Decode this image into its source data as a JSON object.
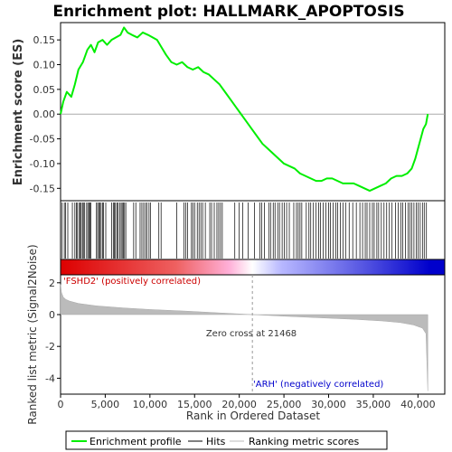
{
  "chart_data": {
    "type": "line",
    "title": "Enrichment plot: HALLMARK_APOPTOSIS",
    "es_panel": {
      "ylabel": "Enrichment score (ES)",
      "ylim": [
        -0.175,
        0.185
      ],
      "yticks": [
        0.15,
        0.1,
        0.05,
        0.0,
        -0.05,
        -0.1,
        -0.15
      ],
      "ytick_labels": [
        "0.15",
        "0.10",
        "0.05",
        "0.00",
        "-0.05",
        "-0.10",
        "-0.15"
      ],
      "series": [
        {
          "name": "Enrichment profile",
          "color": "#00ee00",
          "x": [
            0,
            300,
            700,
            1200,
            1600,
            2000,
            2500,
            3000,
            3400,
            3800,
            4200,
            4700,
            5200,
            5700,
            6200,
            6700,
            7100,
            7500,
            8000,
            8600,
            9200,
            9800,
            10300,
            10800,
            11300,
            11800,
            12400,
            13000,
            13600,
            14200,
            14800,
            15400,
            16000,
            16600,
            17200,
            17800,
            18400,
            19000,
            19600,
            20200,
            20800,
            21400,
            22000,
            22600,
            23200,
            23800,
            24400,
            25000,
            25600,
            26200,
            26800,
            27400,
            28000,
            28600,
            29200,
            29800,
            30400,
            31000,
            31600,
            32200,
            32800,
            33400,
            34000,
            34600,
            35200,
            35800,
            36400,
            37000,
            37600,
            38200,
            38800,
            39300,
            39700,
            40000,
            40300,
            40600,
            40900,
            41100
          ],
          "y": [
            0.0,
            0.025,
            0.045,
            0.035,
            0.06,
            0.09,
            0.105,
            0.13,
            0.14,
            0.125,
            0.145,
            0.15,
            0.14,
            0.15,
            0.155,
            0.16,
            0.175,
            0.165,
            0.16,
            0.155,
            0.165,
            0.16,
            0.155,
            0.15,
            0.135,
            0.12,
            0.105,
            0.1,
            0.105,
            0.095,
            0.09,
            0.095,
            0.085,
            0.08,
            0.07,
            0.06,
            0.045,
            0.03,
            0.015,
            0.0,
            -0.015,
            -0.03,
            -0.045,
            -0.06,
            -0.07,
            -0.08,
            -0.09,
            -0.1,
            -0.105,
            -0.11,
            -0.12,
            -0.125,
            -0.13,
            -0.135,
            -0.135,
            -0.13,
            -0.13,
            -0.135,
            -0.14,
            -0.14,
            -0.14,
            -0.145,
            -0.15,
            -0.155,
            -0.15,
            -0.145,
            -0.14,
            -0.13,
            -0.125,
            -0.125,
            -0.12,
            -0.11,
            -0.09,
            -0.07,
            -0.05,
            -0.03,
            -0.02,
            0.0
          ]
        }
      ]
    },
    "rank_panel": {
      "ylabel": "Ranked list metric (Signal2Noise)",
      "xlabel": "Rank in Ordered Dataset",
      "xlim": [
        0,
        43000
      ],
      "xticks": [
        0,
        5000,
        10000,
        15000,
        20000,
        25000,
        30000,
        35000,
        40000
      ],
      "xtick_labels": [
        "0",
        "5,000",
        "10,000",
        "15,000",
        "20,000",
        "25,000",
        "30,000",
        "35,000",
        "40,000"
      ],
      "ylim": [
        -5.0,
        2.5
      ],
      "yticks": [
        2,
        0,
        -2,
        -4
      ],
      "ytick_labels": [
        "2",
        "0",
        "-2",
        "-4"
      ],
      "zero_cross_rank": 21468,
      "annotations": {
        "zero_cross": "Zero cross at 21468",
        "positive": "'FSHD2' (positively correlated)",
        "negative": "'ARH' (negatively correlated)"
      },
      "metric_profile": {
        "rank": [
          0,
          100,
          300,
          600,
          1000,
          2000,
          4000,
          7000,
          10000,
          14000,
          18000,
          21468,
          25000,
          29000,
          33000,
          36000,
          38000,
          39500,
          40500,
          40900,
          41000,
          41100
        ],
        "value": [
          1.9,
          1.4,
          1.1,
          0.95,
          0.85,
          0.7,
          0.55,
          0.42,
          0.32,
          0.22,
          0.1,
          0.0,
          -0.1,
          -0.2,
          -0.3,
          -0.4,
          -0.5,
          -0.65,
          -0.85,
          -1.2,
          -3.0,
          -4.8
        ]
      }
    },
    "hits": [
      180,
      420,
      560,
      810,
      1320,
      1600,
      1780,
      1850,
      2050,
      2200,
      2300,
      2450,
      2550,
      2700,
      2920,
      3050,
      3200,
      3280,
      3400,
      4020,
      4150,
      4280,
      4400,
      4540,
      4700,
      4820,
      5060,
      5710,
      5900,
      6020,
      6150,
      6300,
      6420,
      6610,
      6780,
      6900,
      7020,
      7160,
      7300,
      8180,
      8420,
      8900,
      9100,
      9300,
      9500,
      9650,
      9900,
      10050,
      11000,
      11250,
      13000,
      13800,
      14000,
      14200,
      14650,
      14800,
      15000,
      15300,
      15500,
      15700,
      15900,
      16200,
      16700,
      16900,
      17200,
      17500,
      17700,
      17900,
      18100,
      19500,
      20000,
      20400,
      21000,
      21700,
      22300,
      22500,
      22800,
      23300,
      23500,
      23800,
      24000,
      24300,
      24500,
      24800,
      25050,
      25300,
      25600,
      26100,
      26400,
      26600,
      26800,
      27000,
      27500,
      27800,
      28000,
      28300,
      28600,
      28900,
      29100,
      29400,
      29700,
      30000,
      30200,
      30500,
      30800,
      31000,
      31300,
      31600,
      31900,
      32300,
      32700,
      33100,
      33500,
      33800,
      34100,
      34300,
      34600,
      34900,
      35100,
      35400,
      35600,
      35900,
      36200,
      36500,
      36800,
      37100,
      37500,
      37800,
      38100,
      38300,
      38600,
      38900,
      39100,
      39300,
      39550,
      39800,
      40000,
      40250,
      40500,
      40700,
      40950
    ],
    "color_bar_stops": [
      "#dd0000",
      "#ee6060",
      "#ffb0d8",
      "#ffffff",
      "#b8b8ff",
      "#5050e0",
      "#0000cc"
    ],
    "legend": [
      "Enrichment profile",
      "Hits",
      "Ranking metric scores"
    ]
  }
}
